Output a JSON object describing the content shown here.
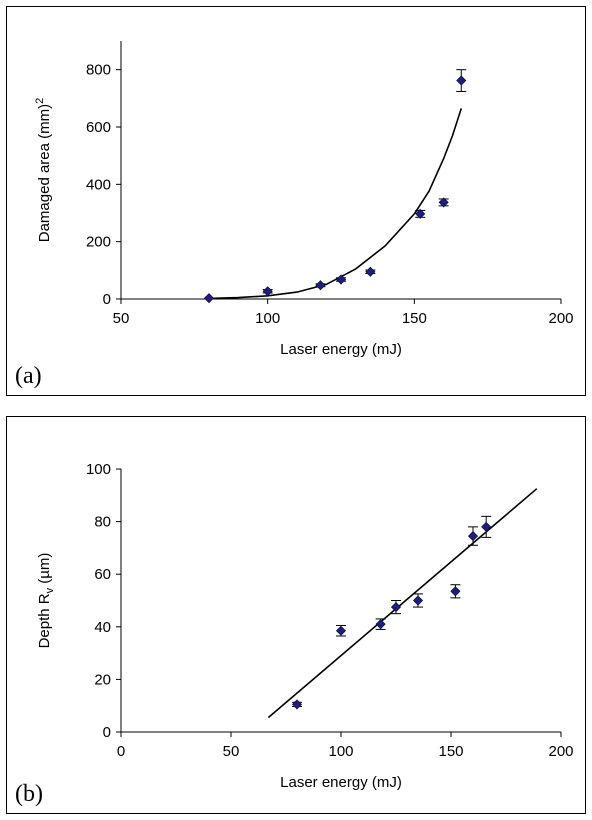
{
  "chart_data": [
    {
      "type": "scatter",
      "panel_label": "(a)",
      "xlabel": "Laser energy (mJ)",
      "ylabel_main": "Damaged area (mm)",
      "ylabel_sup": "2",
      "xlim": [
        50,
        200
      ],
      "ylim": [
        0,
        900
      ],
      "xticks": [
        "50",
        "100",
        "150",
        "200"
      ],
      "yticks": [
        "0",
        "200",
        "400",
        "600",
        "800"
      ],
      "xtick_values": [
        50,
        100,
        150,
        200
      ],
      "ytick_values": [
        0,
        200,
        400,
        600,
        800
      ],
      "points": [
        {
          "x": 80,
          "y": 3,
          "err": 0
        },
        {
          "x": 100,
          "y": 27,
          "err": 6
        },
        {
          "x": 118,
          "y": 48,
          "err": 5
        },
        {
          "x": 125,
          "y": 68,
          "err": 6
        },
        {
          "x": 135,
          "y": 95,
          "err": 6
        },
        {
          "x": 152,
          "y": 297,
          "err": 12
        },
        {
          "x": 160,
          "y": 337,
          "err": 12
        },
        {
          "x": 166,
          "y": 762,
          "err": 38
        }
      ],
      "fit": {
        "type": "exponential",
        "x_range": [
          80,
          166
        ],
        "points": [
          [
            80,
            2
          ],
          [
            90,
            5
          ],
          [
            100,
            11
          ],
          [
            110,
            24
          ],
          [
            120,
            51
          ],
          [
            130,
            105
          ],
          [
            140,
            185
          ],
          [
            150,
            297
          ],
          [
            155,
            376
          ],
          [
            160,
            490
          ],
          [
            163,
            570
          ],
          [
            166,
            665
          ]
        ]
      },
      "marker_color": "#1f1f7a",
      "grid": false
    },
    {
      "type": "scatter",
      "panel_label": "(b)",
      "xlabel": "Laser energy (mJ)",
      "ylabel_main": "Depth R",
      "ylabel_sub": "v",
      "ylabel_unit": " (µm)",
      "xlim": [
        0,
        200
      ],
      "ylim": [
        0,
        100
      ],
      "xticks": [
        "0",
        "50",
        "100",
        "150",
        "200"
      ],
      "yticks": [
        "0",
        "20",
        "40",
        "60",
        "80",
        "100"
      ],
      "xtick_values": [
        0,
        50,
        100,
        150,
        200
      ],
      "ytick_values": [
        0,
        20,
        40,
        60,
        80,
        100
      ],
      "points": [
        {
          "x": 80,
          "y": 10.5,
          "err": 0.8
        },
        {
          "x": 100,
          "y": 38.5,
          "err": 2
        },
        {
          "x": 118,
          "y": 41,
          "err": 2
        },
        {
          "x": 125,
          "y": 47.5,
          "err": 2.5
        },
        {
          "x": 135,
          "y": 50,
          "err": 2.5
        },
        {
          "x": 152,
          "y": 53.5,
          "err": 2.5
        },
        {
          "x": 160,
          "y": 74.5,
          "err": 3.5
        },
        {
          "x": 166,
          "y": 78,
          "err": 4
        }
      ],
      "fit": {
        "type": "linear",
        "points": [
          [
            67,
            5.5
          ],
          [
            189,
            92.5
          ]
        ]
      },
      "marker_color": "#1f1f7a",
      "grid": false
    }
  ]
}
